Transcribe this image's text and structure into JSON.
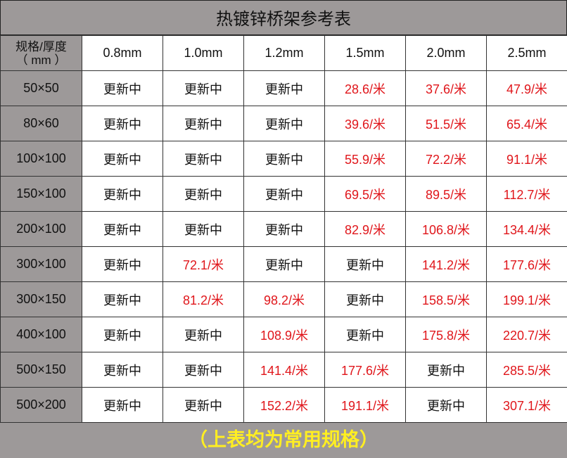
{
  "title": "热镀锌桥架参考表",
  "header": {
    "spec_label_line1": "规格/厚度",
    "spec_label_line2": "（ mm ）",
    "thicknesses": [
      "0.8mm",
      "1.0mm",
      "1.2mm",
      "1.5mm",
      "2.0mm",
      "2.5mm"
    ]
  },
  "rows": [
    {
      "spec": "50×50",
      "cells": [
        "更新中",
        "更新中",
        "更新中",
        "28.6/米",
        "37.6/米",
        "47.9/米"
      ]
    },
    {
      "spec": "80×60",
      "cells": [
        "更新中",
        "更新中",
        "更新中",
        "39.6/米",
        "51.5/米",
        "65.4/米"
      ]
    },
    {
      "spec": "100×100",
      "cells": [
        "更新中",
        "更新中",
        "更新中",
        "55.9/米",
        "72.2/米",
        "91.1/米"
      ]
    },
    {
      "spec": "150×100",
      "cells": [
        "更新中",
        "更新中",
        "更新中",
        "69.5/米",
        "89.5/米",
        "112.7/米"
      ]
    },
    {
      "spec": "200×100",
      "cells": [
        "更新中",
        "更新中",
        "更新中",
        "82.9/米",
        "106.8/米",
        "134.4/米"
      ]
    },
    {
      "spec": "300×100",
      "cells": [
        "更新中",
        "72.1/米",
        "更新中",
        "更新中",
        "141.2/米",
        "177.6/米"
      ]
    },
    {
      "spec": "300×150",
      "cells": [
        "更新中",
        "81.2/米",
        "98.2/米",
        "更新中",
        "158.5/米",
        "199.1/米"
      ]
    },
    {
      "spec": "400×100",
      "cells": [
        "更新中",
        "更新中",
        "108.9/米",
        "更新中",
        "175.8/米",
        "220.7/米"
      ]
    },
    {
      "spec": "500×150",
      "cells": [
        "更新中",
        "更新中",
        "141.4/米",
        "177.6/米",
        "更新中",
        "285.5/米"
      ]
    },
    {
      "spec": "500×200",
      "cells": [
        "更新中",
        "更新中",
        "152.2/米",
        "191.1/米",
        "更新中",
        "307.1/米"
      ]
    }
  ],
  "footer": "（上表均为常用规格）",
  "colors": {
    "price": "#e0161b",
    "pending": "#111111",
    "header_bg": "#9d9999",
    "footer_text": "#ffee22"
  }
}
